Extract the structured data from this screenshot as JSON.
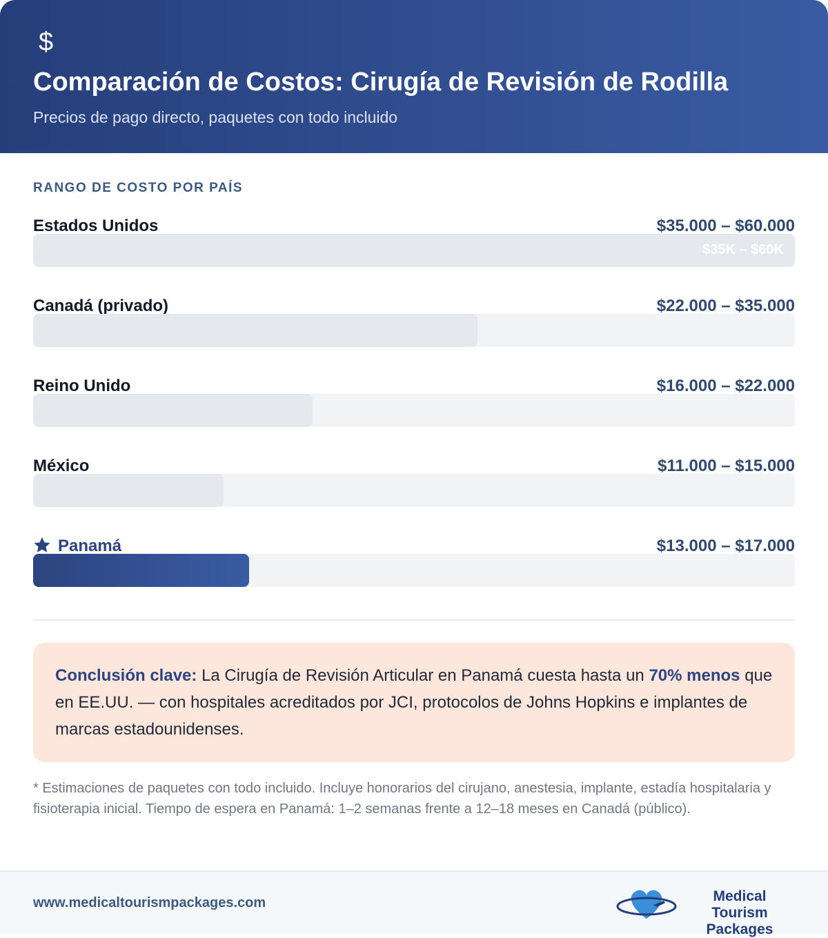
{
  "header": {
    "icon": "$",
    "title": "Comparación de Costos: Cirugía de Revisión de Rodilla",
    "subtitle": "Precios de pago directo, paquetes con todo incluido"
  },
  "chart_data": {
    "type": "bar",
    "section_label": "RANGO DE COSTO POR PAÍS",
    "categories": [
      "Estados Unidos",
      "Canadá (privado)",
      "Reino Unido",
      "México",
      "Panamá"
    ],
    "values": [
      60000,
      35000,
      22000,
      15000,
      17000
    ],
    "value_labels": [
      "$35.000 – $60.000",
      "$22.000 – $35.000",
      "$16.000 – $22.000",
      "$11.000 – $15.000",
      "$13.000 – $17.000"
    ],
    "inner_labels": [
      "$35K – $60K",
      null,
      null,
      null,
      null
    ],
    "xlim": [
      0,
      60000
    ],
    "color": "#e5e8ec",
    "highlight_index": 4,
    "highlight_color": "#2c4580"
  },
  "conclusion": {
    "lead": "Conclusión clave:",
    "text1": "La Cirugía de Revisión Articular en Panamá cuesta hasta un",
    "bold": "70% menos",
    "text2": "que en EE.UU. — con hospitales acreditados por JCI, protocolos de Johns Hopkins e implantes de marcas estadounidenses."
  },
  "footnote": "* Estimaciones de paquetes con todo incluido. Incluye honorarios del cirujano, anestesia, implante, estadía hospitalaria y fisioterapia inicial. Tiempo de espera en Panamá: 1–2 semanas frente a 12–18 meses en Canadá (público).",
  "footer": {
    "url": "www.medicaltourismpackages.com",
    "logo_line1": "Medical Tourism",
    "logo_line2": "Packages"
  }
}
